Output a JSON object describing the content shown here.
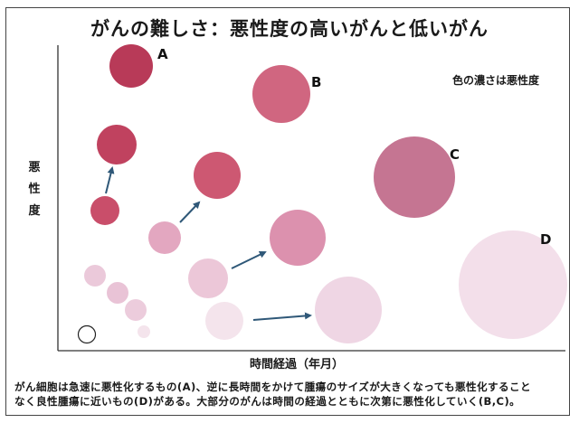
{
  "title": "がんの難しさ：悪性度の高いがんと低いがん",
  "note": "色の濃さは悪性度",
  "y_axis_label": [
    "悪",
    "性",
    "度"
  ],
  "x_axis_label": "時間経過（年月）",
  "footer": [
    "がん細胞は急速に悪性化するもの(A)、逆に長時間をかけて腫瘍のサイズが大きくなっても悪性化すること",
    "なく良性腫瘍に近いもの(D)がある。大部分のがんは時間の経過とともに次第に悪性化していく(B,C)。"
  ],
  "circle_labels": [
    "A",
    "B",
    "C",
    "D"
  ],
  "colors": {
    "high": "#c64a68",
    "mid": "#d98fac",
    "low": "#f1dbe7",
    "arrow": "#2f5878"
  }
}
